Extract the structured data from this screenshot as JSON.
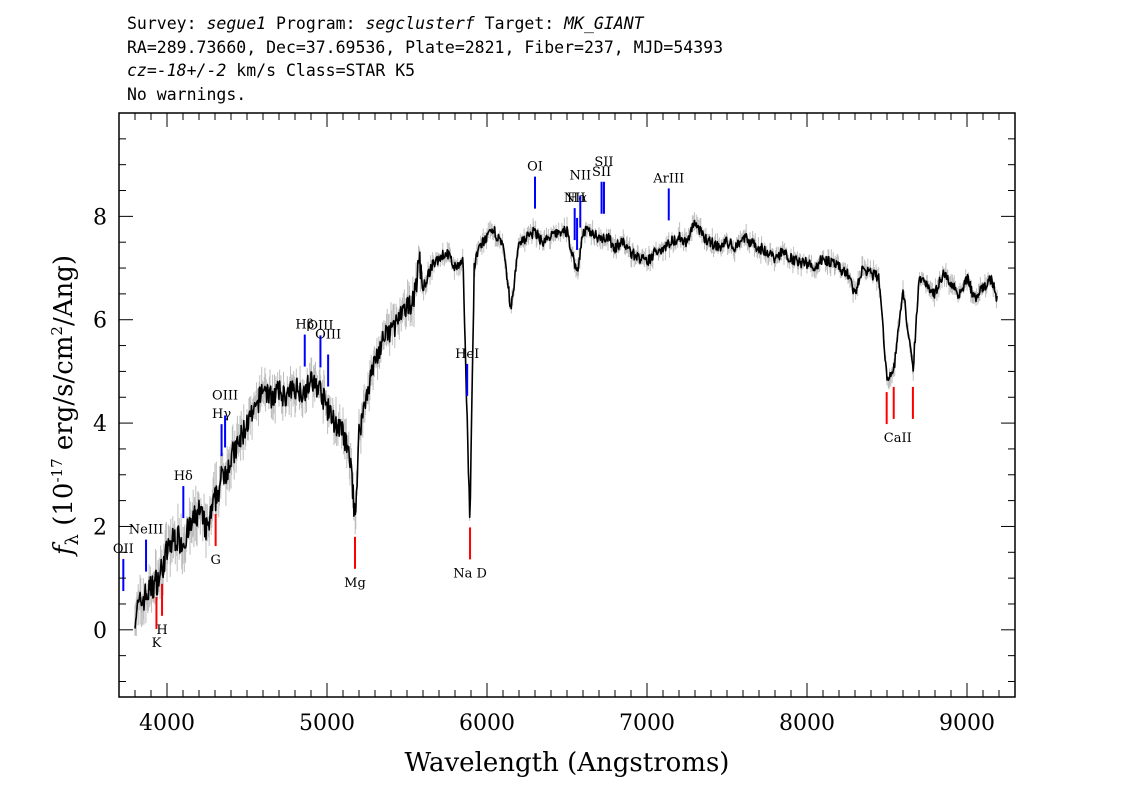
{
  "header": {
    "l1_survey_label": "Survey: ",
    "l1_survey": "segue1",
    "l1_program_label": " Program: ",
    "l1_program": "segclusterf",
    "l1_target_label": " Target: ",
    "l1_target": "MK_GIANT",
    "line2": "RA=289.73660, Dec=37.69536, Plate=2821, Fiber=237, MJD=54393",
    "l3_cz": "cz=-18+/-2",
    "l3_rest": " km/s Class=STAR K5",
    "line4": "No warnings."
  },
  "chart_data": {
    "type": "line",
    "xlabel": "Wavelength (Angstroms)",
    "ylabel": "f_λ (10^-17 erg/s/cm^2/Ang)",
    "xlim": [
      3700,
      9300
    ],
    "ylim": [
      -1.3,
      10.0
    ],
    "xticks": [
      "4000",
      "5000",
      "6000",
      "7000",
      "8000",
      "9000"
    ],
    "yticks": [
      "0",
      "2",
      "4",
      "6",
      "8"
    ],
    "series": [
      {
        "color": "#000000",
        "x": [
          3800,
          3850,
          3900,
          3950,
          4000,
          4050,
          4100,
          4150,
          4200,
          4250,
          4300,
          4350,
          4400,
          4450,
          4500,
          4550,
          4600,
          4650,
          4700,
          4750,
          4800,
          4850,
          4900,
          4950,
          5000,
          5050,
          5100,
          5150,
          5175,
          5200,
          5250,
          5300,
          5350,
          5400,
          5450,
          5500,
          5550,
          5577,
          5600,
          5650,
          5700,
          5750,
          5800,
          5850,
          5893,
          5920,
          5950,
          6000,
          6050,
          6100,
          6150,
          6200,
          6250,
          6300,
          6350,
          6400,
          6450,
          6500,
          6563,
          6600,
          6650,
          6700,
          6750,
          6800,
          6850,
          6900,
          6950,
          7000,
          7050,
          7100,
          7150,
          7200,
          7250,
          7300,
          7350,
          7400,
          7450,
          7500,
          7550,
          7600,
          7650,
          7700,
          7750,
          7800,
          7850,
          7900,
          7950,
          8000,
          8050,
          8100,
          8150,
          8200,
          8250,
          8300,
          8350,
          8400,
          8450,
          8498,
          8542,
          8600,
          8662,
          8700,
          8750,
          8800,
          8850,
          8900,
          8950,
          9000,
          9050,
          9100,
          9150,
          9190
        ],
        "values": [
          0.3,
          0.6,
          0.8,
          1.0,
          1.5,
          1.8,
          1.7,
          2.0,
          2.3,
          1.9,
          2.5,
          3.0,
          3.3,
          3.6,
          4.0,
          4.2,
          4.7,
          4.5,
          4.6,
          4.5,
          4.7,
          4.6,
          4.8,
          4.7,
          4.3,
          4.0,
          3.8,
          3.2,
          2.1,
          3.8,
          4.6,
          5.2,
          5.6,
          5.8,
          6.0,
          6.2,
          6.5,
          7.2,
          6.6,
          7.0,
          7.2,
          7.3,
          7.0,
          7.1,
          2.1,
          7.0,
          7.4,
          7.6,
          7.7,
          7.4,
          6.2,
          7.5,
          7.6,
          7.7,
          7.5,
          7.6,
          7.7,
          7.7,
          6.9,
          7.7,
          7.7,
          7.6,
          7.6,
          7.4,
          7.5,
          7.3,
          7.2,
          7.1,
          7.3,
          7.4,
          7.5,
          7.6,
          7.5,
          7.9,
          7.6,
          7.5,
          7.4,
          7.5,
          7.4,
          7.6,
          7.5,
          7.4,
          7.3,
          7.2,
          7.3,
          7.2,
          7.1,
          7.1,
          7.0,
          7.2,
          7.1,
          7.0,
          6.9,
          6.5,
          7.0,
          6.9,
          6.8,
          4.9,
          5.0,
          6.6,
          5.0,
          6.8,
          6.7,
          6.5,
          6.9,
          6.7,
          6.5,
          6.8,
          6.4,
          6.6,
          6.8,
          6.4
        ]
      }
    ],
    "line_markers": {
      "emission_color": "#0000ff",
      "absorption_color": "#ff0000",
      "emission": [
        {
          "label": "OII",
          "wave": 3727
        },
        {
          "label": "NeIII",
          "wave": 3869
        },
        {
          "label": "Hδ",
          "wave": 4102
        },
        {
          "label": "Hγ",
          "wave": 4341
        },
        {
          "label": "OIII",
          "wave": 4363
        },
        {
          "label": "Hβ",
          "wave": 4861
        },
        {
          "label": "OIII",
          "wave": 4959
        },
        {
          "label": "OIII",
          "wave": 5007
        },
        {
          "label": "HeI",
          "wave": 5876
        },
        {
          "label": "OI",
          "wave": 6300
        },
        {
          "label": "NII",
          "wave": 6548
        },
        {
          "label": "Hα",
          "wave": 6563
        },
        {
          "label": "NII",
          "wave": 6583
        },
        {
          "label": "SII",
          "wave": 6716
        },
        {
          "label": "SII",
          "wave": 6731
        },
        {
          "label": "ArIII",
          "wave": 7136
        }
      ],
      "absorption": [
        {
          "label": "K",
          "wave": 3934
        },
        {
          "label": "H",
          "wave": 3969
        },
        {
          "label": "G",
          "wave": 4304
        },
        {
          "label": "Mg",
          "wave": 5175
        },
        {
          "label": "Na D",
          "wave": 5894
        },
        {
          "label": "CaII",
          "wave": 8498
        },
        {
          "label": "CaII",
          "wave": 8542
        },
        {
          "label": "CaII",
          "wave": 8662
        }
      ]
    }
  }
}
